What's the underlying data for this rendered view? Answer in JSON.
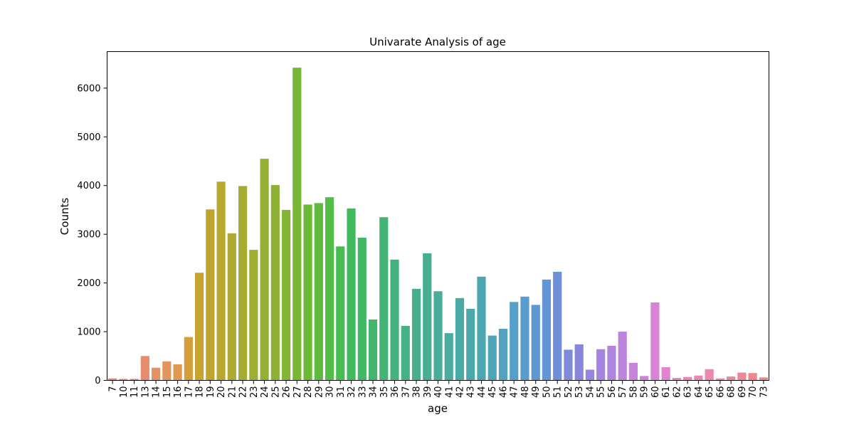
{
  "chart_data": {
    "type": "bar",
    "title": "Univarate Analysis of age",
    "xlabel": "age",
    "ylabel": "Counts",
    "ylim": [
      0,
      6750
    ],
    "yticks": [
      0,
      1000,
      2000,
      3000,
      4000,
      5000,
      6000
    ],
    "yticklabels": [
      "0",
      "1000",
      "2000",
      "3000",
      "4000",
      "5000",
      "6000"
    ],
    "grid": false,
    "categories": [
      "7",
      "10",
      "11",
      "13",
      "14",
      "15",
      "16",
      "17",
      "18",
      "19",
      "20",
      "21",
      "22",
      "23",
      "24",
      "25",
      "26",
      "27",
      "28",
      "29",
      "30",
      "31",
      "32",
      "33",
      "34",
      "35",
      "36",
      "37",
      "38",
      "39",
      "40",
      "41",
      "42",
      "43",
      "44",
      "45",
      "46",
      "47",
      "48",
      "49",
      "50",
      "51",
      "52",
      "53",
      "54",
      "55",
      "56",
      "57",
      "58",
      "59",
      "60",
      "61",
      "62",
      "63",
      "64",
      "65",
      "66",
      "68",
      "69",
      "70",
      "73"
    ],
    "values": [
      40,
      30,
      30,
      500,
      260,
      390,
      330,
      890,
      2210,
      3510,
      4080,
      3020,
      3990,
      2680,
      4550,
      4010,
      3500,
      6420,
      3610,
      3640,
      3760,
      2750,
      3530,
      2930,
      1250,
      3350,
      2480,
      1120,
      1880,
      2610,
      1830,
      970,
      1690,
      1470,
      2130,
      920,
      1060,
      1610,
      1720,
      1550,
      2070,
      2230,
      630,
      740,
      220,
      640,
      710,
      1000,
      360,
      90,
      1600,
      270,
      50,
      70,
      100,
      230,
      40,
      80,
      160,
      150,
      60
    ],
    "colors": [
      "#e8877f",
      "#e7887c",
      "#e68a78",
      "#e78d6e",
      "#e59065",
      "#e3945c",
      "#de9a50",
      "#d49f3b",
      "#c9a32f",
      "#bfa52f",
      "#b6a831",
      "#aeaa32",
      "#a6ac32",
      "#9dae33",
      "#95b034",
      "#8db235",
      "#84b436",
      "#79b737",
      "#6cb938",
      "#5fbb3d",
      "#53bd47",
      "#49bb53",
      "#43b95d",
      "#42b766",
      "#43b56f",
      "#44b477",
      "#45b27e",
      "#46b185",
      "#47b08b",
      "#48ae92",
      "#49ad98",
      "#4aac9e",
      "#4baaa4",
      "#4ca9aa",
      "#4da7b1",
      "#4fa5b8",
      "#53a2c1",
      "#569fc8",
      "#5a9ccd",
      "#5e98d1",
      "#6394d6",
      "#6c8fd8",
      "#7d8bda",
      "#8a87db",
      "#9885dc",
      "#a484dc",
      "#b084dc",
      "#bc84dd",
      "#c684dc",
      "#d084da",
      "#d884d6",
      "#e084d0",
      "#e585c8",
      "#e986c0",
      "#ec87b8",
      "#ee87b0",
      "#ee88a8",
      "#ee88a0",
      "#ed8898",
      "#ec8890",
      "#ea888a"
    ]
  }
}
